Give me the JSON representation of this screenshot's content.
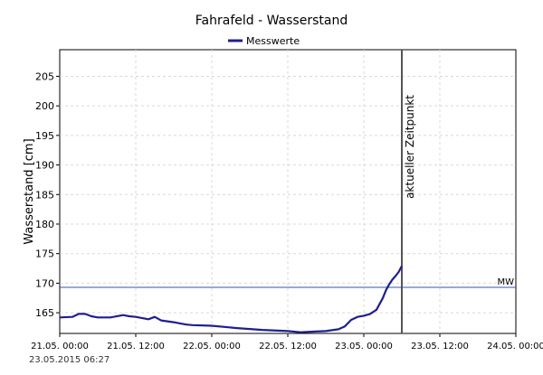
{
  "chart_data": {
    "type": "line",
    "title": "Fahrafeld - Wasserstand",
    "ylabel": "Wasserstand [cm]",
    "xlabel": "",
    "legend": {
      "placement": "top-center",
      "entries": [
        "Messwerte"
      ]
    },
    "grid": true,
    "ylim": [
      161.5,
      209.5
    ],
    "yticks": [
      165,
      170,
      175,
      180,
      185,
      190,
      195,
      200,
      205
    ],
    "xticks": [
      "21.05. 00:00",
      "21.05. 12:00",
      "22.05. 00:00",
      "22.05. 12:00",
      "23.05. 00:00",
      "23.05. 12:00",
      "24.05. 00:00"
    ],
    "xlim_hours": [
      0,
      72
    ],
    "series": [
      {
        "name": "Messwerte",
        "color": "#1f1f8f",
        "x_hours": [
          0,
          2,
          3,
          4,
          5,
          6,
          7,
          8,
          10,
          11,
          12,
          14,
          15,
          16,
          18,
          19,
          20,
          21,
          24,
          28,
          32,
          36,
          38,
          40,
          42,
          44,
          45,
          46,
          47,
          48,
          49,
          50,
          51,
          51.5,
          52,
          52.5,
          53,
          53.5,
          54
        ],
        "values": [
          164.2,
          164.3,
          164.8,
          164.8,
          164.4,
          164.2,
          164.2,
          164.2,
          164.6,
          164.4,
          164.3,
          163.9,
          164.3,
          163.7,
          163.4,
          163.2,
          163.0,
          162.9,
          162.8,
          162.4,
          162.1,
          161.9,
          161.7,
          161.8,
          161.9,
          162.2,
          162.7,
          163.8,
          164.3,
          164.5,
          164.8,
          165.5,
          167.5,
          168.8,
          169.8,
          170.6,
          171.2,
          171.9,
          172.9
        ]
      }
    ],
    "annotations": [
      {
        "type": "vertical-line",
        "x_hours": 54,
        "label": "aktueller Zeitpunkt",
        "color": "#555555"
      },
      {
        "type": "horizontal-line",
        "y": 169.3,
        "label": "MW",
        "color": "#3355aa"
      }
    ]
  },
  "footer": {
    "timestamp": "23.05.2015  06:27"
  }
}
